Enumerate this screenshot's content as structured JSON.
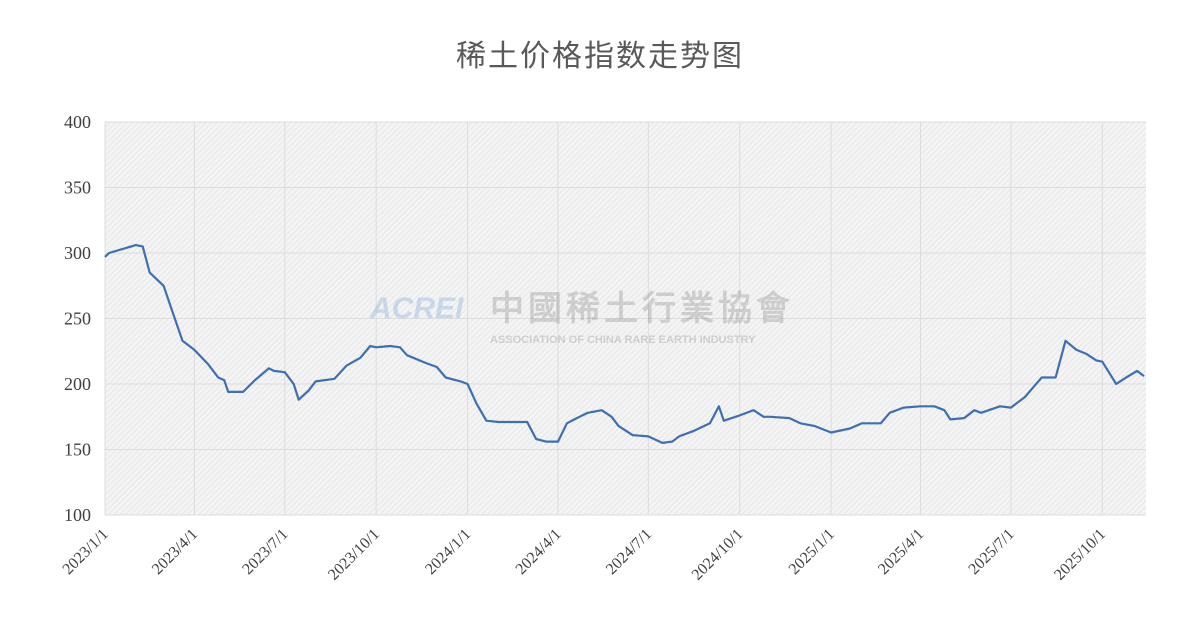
{
  "chart_data": {
    "type": "line",
    "title": "稀土价格指数走势图",
    "watermark": {
      "logo": "ACREI",
      "name": "中國稀土行業協會",
      "subtitle": "ASSOCIATION OF CHINA RARE EARTH INDUSTRY"
    },
    "color": "#3e6fb3",
    "grid": true,
    "x": [
      "2023/1/1",
      "2023/1/5",
      "2023/2/1",
      "2023/2/8",
      "2023/2/15",
      "2023/3/1",
      "2023/3/10",
      "2023/3/20",
      "2023/4/1",
      "2023/4/15",
      "2023/4/25",
      "2023/5/1",
      "2023/5/5",
      "2023/5/20",
      "2023/6/1",
      "2023/6/15",
      "2023/6/20",
      "2023/7/1",
      "2023/7/10",
      "2023/7/15",
      "2023/7/25",
      "2023/8/1",
      "2023/8/20",
      "2023/9/1",
      "2023/9/15",
      "2023/9/25",
      "2023/10/1",
      "2023/10/15",
      "2023/10/25",
      "2023/11/1",
      "2023/11/20",
      "2023/12/1",
      "2023/12/10",
      "2023/12/25",
      "2024/1/1",
      "2024/1/10",
      "2024/1/20",
      "2024/2/1",
      "2024/2/20",
      "2024/3/1",
      "2024/3/10",
      "2024/3/20",
      "2024/4/1",
      "2024/4/10",
      "2024/4/20",
      "2024/5/1",
      "2024/5/15",
      "2024/5/25",
      "2024/6/1",
      "2024/6/15",
      "2024/7/1",
      "2024/7/15",
      "2024/7/25",
      "2024/8/1",
      "2024/8/15",
      "2024/9/1",
      "2024/9/10",
      "2024/9/15",
      "2024/10/1",
      "2024/10/15",
      "2024/10/25",
      "2024/11/1",
      "2024/11/20",
      "2024/12/1",
      "2024/12/15",
      "2025/1/1",
      "2025/1/20",
      "2025/2/1",
      "2025/2/20",
      "2025/3/1",
      "2025/3/15",
      "2025/4/1",
      "2025/4/15",
      "2025/4/25",
      "2025/5/1",
      "2025/5/15",
      "2025/5/25",
      "2025/6/1",
      "2025/6/20",
      "2025/7/1",
      "2025/7/15",
      "2025/8/1",
      "2025/8/15",
      "2025/8/25",
      "2025/9/5",
      "2025/9/15",
      "2025/9/25",
      "2025/10/1",
      "2025/10/15",
      "2025/10/25",
      "2025/11/5",
      "2025/11/12"
    ],
    "values": [
      297,
      300,
      306,
      305,
      285,
      275,
      255,
      233,
      226,
      215,
      205,
      203,
      194,
      194,
      203,
      212,
      210,
      209,
      200,
      188,
      195,
      202,
      204,
      214,
      220,
      229,
      228,
      229,
      228,
      222,
      216,
      213,
      205,
      202,
      200,
      185,
      172,
      171,
      171,
      171,
      158,
      156,
      156,
      170,
      174,
      178,
      180,
      175,
      168,
      161,
      160,
      155,
      156,
      160,
      164,
      170,
      183,
      172,
      176,
      180,
      175,
      175,
      174,
      170,
      168,
      163,
      166,
      170,
      170,
      178,
      182,
      183,
      183,
      180,
      173,
      174,
      180,
      178,
      183,
      182,
      190,
      205,
      205,
      233,
      226,
      223,
      218,
      217,
      200,
      205,
      210,
      206
    ],
    "xlim": [
      "2023/1/1",
      "2025/11/14"
    ],
    "xticks": [
      "2023/1/1",
      "2023/4/1",
      "2023/7/1",
      "2023/10/1",
      "2024/1/1",
      "2024/4/1",
      "2024/7/1",
      "2024/10/1",
      "2025/1/1",
      "2025/4/1",
      "2025/7/1",
      "2025/10/1"
    ],
    "ylim": [
      100,
      400
    ],
    "yticks": [
      100,
      150,
      200,
      250,
      300,
      350,
      400
    ]
  }
}
